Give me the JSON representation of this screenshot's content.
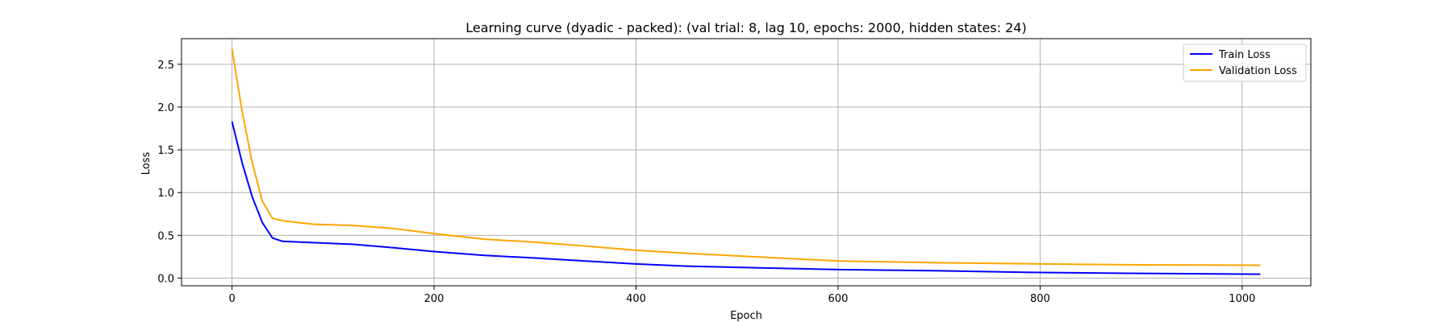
{
  "chart_data": {
    "type": "line",
    "title": "Learning curve (dyadic - packed): (val trial: 8, lag 10, epochs: 2000, hidden states: 24)",
    "xlabel": "Epoch",
    "ylabel": "Loss",
    "xlim": [
      -50,
      1068
    ],
    "ylim": [
      -0.09,
      2.8
    ],
    "xticks": [
      0,
      200,
      400,
      600,
      800,
      1000
    ],
    "yticks": [
      0.0,
      0.5,
      1.0,
      1.5,
      2.0,
      2.5
    ],
    "xtick_labels": [
      "0",
      "200",
      "400",
      "600",
      "800",
      "1000"
    ],
    "ytick_labels": [
      "0.0",
      "0.5",
      "1.0",
      "1.5",
      "2.0",
      "2.5"
    ],
    "grid": true,
    "legend_position": "top-right",
    "series": [
      {
        "name": "Train Loss",
        "color": "#0000ff",
        "x": [
          0,
          10,
          20,
          30,
          40,
          50,
          80,
          120,
          160,
          200,
          250,
          300,
          350,
          400,
          450,
          500,
          600,
          700,
          800,
          900,
          1018
        ],
        "y": [
          1.83,
          1.35,
          0.95,
          0.65,
          0.47,
          0.43,
          0.415,
          0.395,
          0.355,
          0.31,
          0.265,
          0.235,
          0.2,
          0.165,
          0.14,
          0.125,
          0.1,
          0.085,
          0.065,
          0.055,
          0.045
        ]
      },
      {
        "name": "Validation Loss",
        "color": "#ffa500",
        "x": [
          0,
          10,
          20,
          30,
          40,
          50,
          80,
          120,
          160,
          200,
          250,
          300,
          350,
          400,
          450,
          500,
          600,
          700,
          800,
          900,
          1018
        ],
        "y": [
          2.68,
          1.95,
          1.35,
          0.9,
          0.7,
          0.67,
          0.63,
          0.615,
          0.58,
          0.52,
          0.455,
          0.42,
          0.375,
          0.325,
          0.29,
          0.26,
          0.2,
          0.18,
          0.165,
          0.155,
          0.15
        ]
      }
    ]
  }
}
